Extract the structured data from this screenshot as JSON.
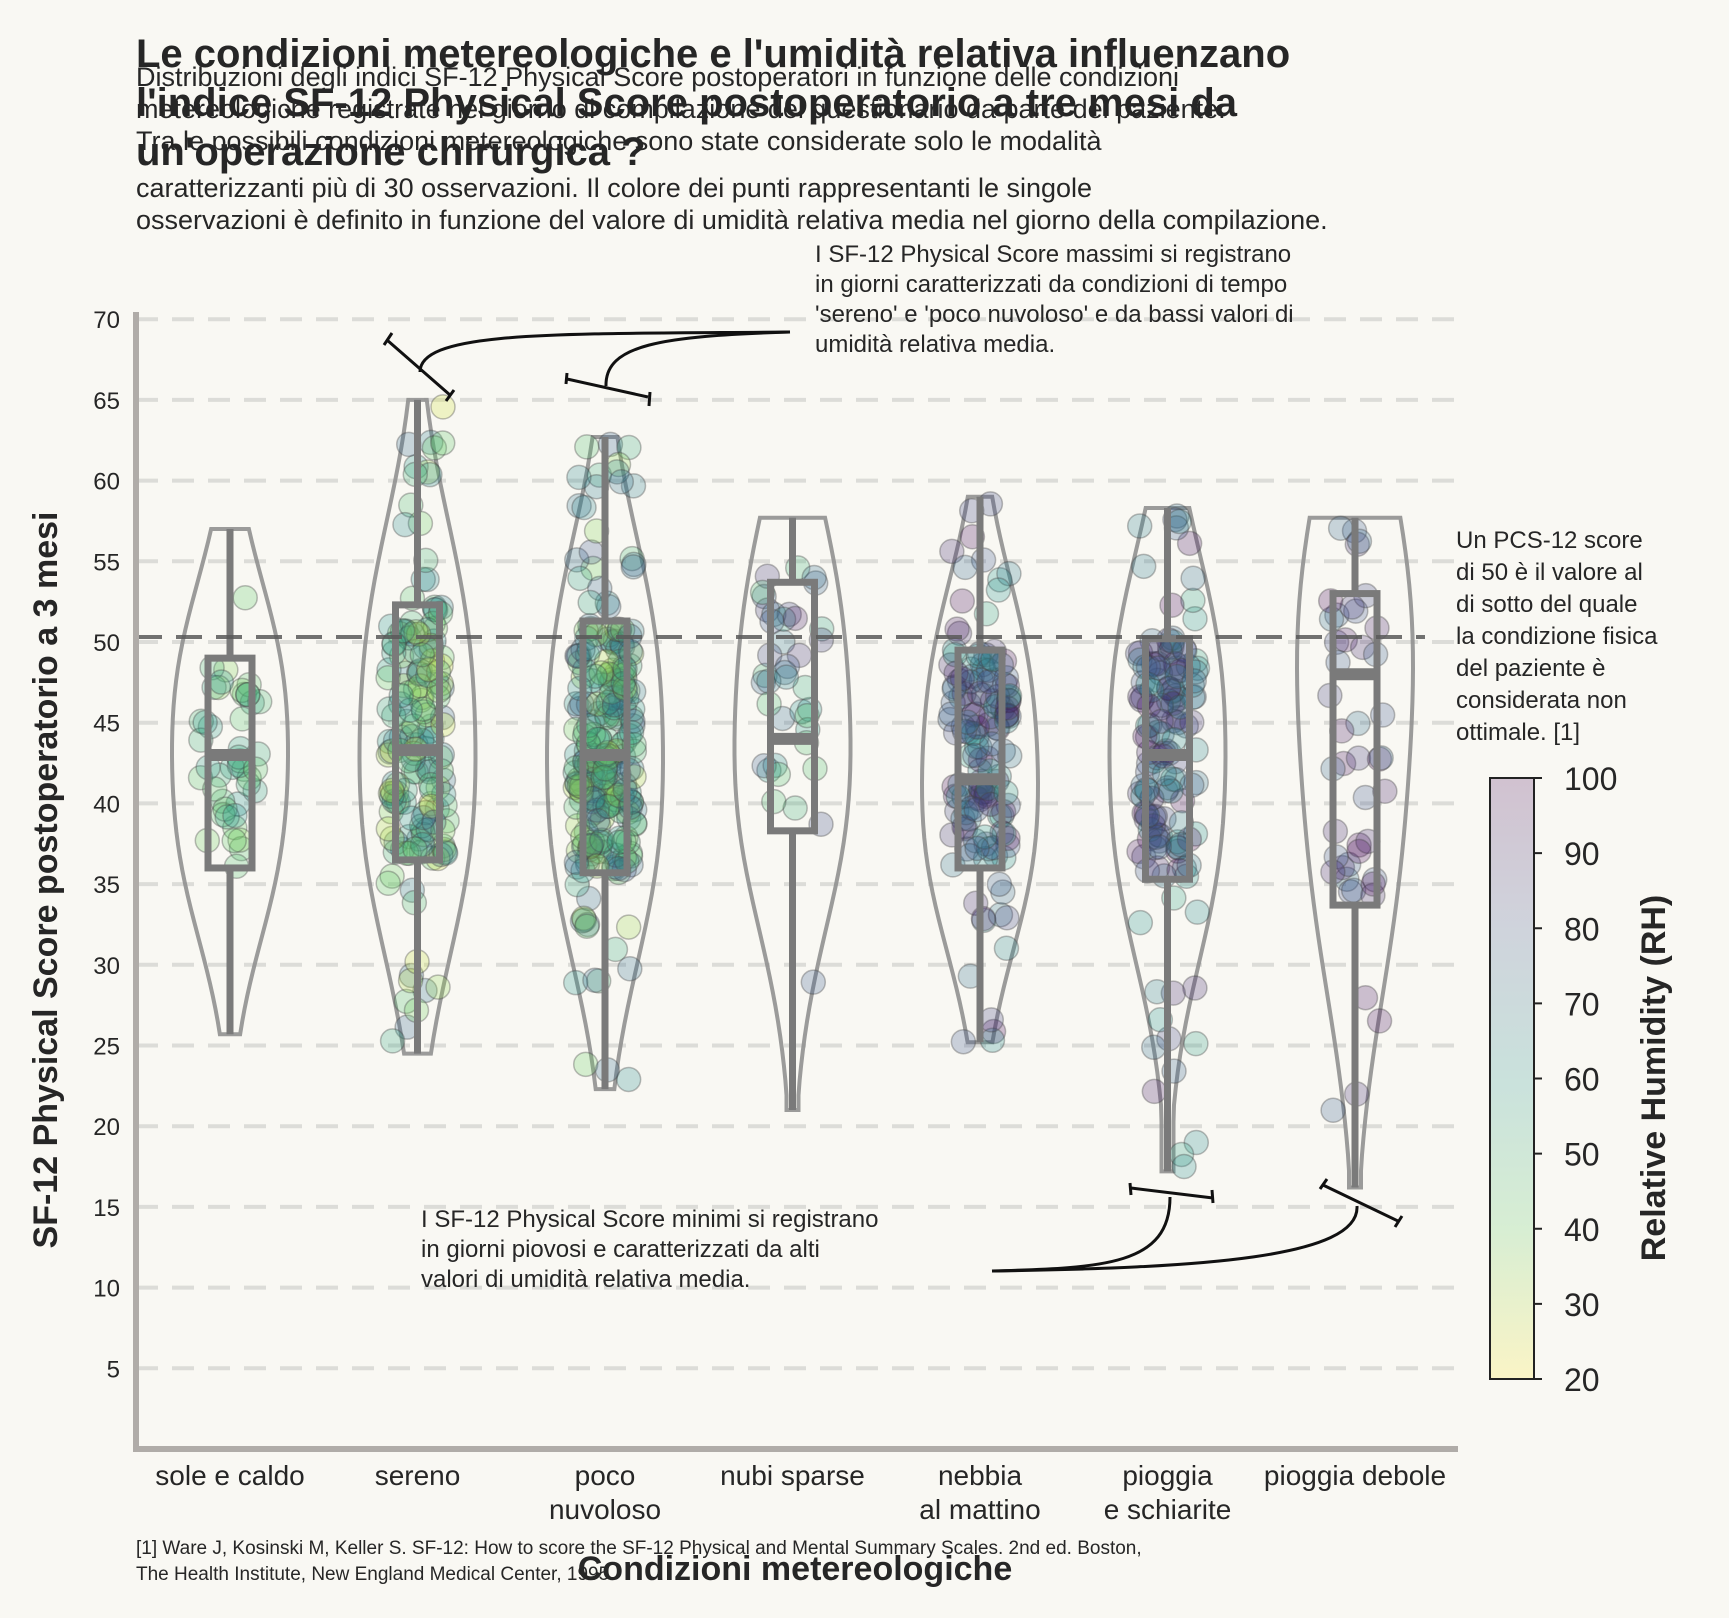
{
  "title": "Le condizioni metereologiche e l'umidità relativa influenzano l'indice SF-12 Physical Score postoperatorio a tre mesi da un'operazione chirurgica ?",
  "title_lines": [
    "Le condizioni metereologiche e l'umidità relativa influenzano",
    "l'indice SF-12 Physical Score postoperatorio a tre mesi da",
    "un'operazione chirurgica ?"
  ],
  "subtitle_lines": [
    "Distribuzioni degli indici SF-12 Physical Score postoperatori in funzione delle condizioni",
    "metereologiche registrate nel giorno di compilazione del questionario da parte del paziente.",
    "Tra le possibili condizioni metereologiche sono state considerate solo le modalità",
    "caratterizzanti più di 30 osservazioni. Il colore dei punti rappresentanti le singole",
    "osservazioni è definito in funzione del valore di umidità relativa media nel giorno della compilazione."
  ],
  "annotation_top_lines": [
    "I SF-12 Physical Score massimi si registrano",
    "in giorni caratterizzati da condizioni di tempo",
    "'sereno' e 'poco nuvoloso' e da bassi valori di",
    "umidità relativa media."
  ],
  "annotation_bottom_lines": [
    "I SF-12 Physical Score minimi si registrano",
    "in giorni piovosi e caratterizzati da alti",
    "valori di umidità relativa media."
  ],
  "annotation_side_lines": [
    "Un PCS-12 score",
    "di 50 è il valore al",
    "di sotto del quale",
    "la condizione fisica",
    " del paziente è",
    "considerata non",
    "ottimale. [1]"
  ],
  "reference_lines": [
    "[1] Ware J, Kosinski M, Keller S. SF-12: How to score the SF-12 Physical and Mental Summary Scales. 2nd ed. Boston,",
    "The Health Institute, New England Medical Center, 1995"
  ],
  "colors": {
    "background": "#f9f8f3",
    "box": "#7a7a7a",
    "violin": "#909090",
    "threshold": "#5a5a5a",
    "grid": "#dcdcd8",
    "spine": "#b0aca8",
    "colormap": [
      "#fde725",
      "#5ec962",
      "#21918c",
      "#3b528b",
      "#440154"
    ]
  },
  "chart_data": {
    "type": "violin",
    "xlabel": "Condizioni metereologiche",
    "ylabel": "SF-12 Physical Score postoperatorio a 3 mesi",
    "ylim": [
      0,
      70
    ],
    "yticks": [
      5,
      10,
      15,
      20,
      25,
      30,
      35,
      40,
      45,
      50,
      55,
      60,
      65,
      70
    ],
    "grid": "horizontal dashed",
    "threshold": 50,
    "colorbar": {
      "label": "Relative Humidity ($RH$)",
      "label_display": "Relative Humidity (RH)",
      "range": [
        20,
        100
      ],
      "ticks": [
        20,
        30,
        40,
        50,
        60,
        70,
        80,
        90,
        100
      ],
      "colormap": "viridis_r"
    },
    "categories": [
      {
        "label": "sole e caldo",
        "label_lines": [
          "sole e caldo"
        ],
        "min": 25.7,
        "q1": 36,
        "median": 43,
        "q3": 49,
        "max": 57,
        "n": 45,
        "rh": [
          35,
          60
        ]
      },
      {
        "label": "sereno",
        "label_lines": [
          "sereno"
        ],
        "min": 24.5,
        "q1": 36.5,
        "median": 43.3,
        "q3": 52.3,
        "max": 65,
        "n": 170,
        "rh": [
          25,
          75
        ]
      },
      {
        "label": "poco nuvoloso",
        "label_lines": [
          "poco",
          "nuvoloso"
        ],
        "min": 22.3,
        "q1": 35.7,
        "median": 43,
        "q3": 51.3,
        "max": 62.7,
        "n": 260,
        "rh": [
          30,
          80
        ]
      },
      {
        "label": "nubi sparse",
        "label_lines": [
          "nubi sparse"
        ],
        "min": 21,
        "q1": 38.3,
        "median": 44,
        "q3": 53.7,
        "max": 57.7,
        "n": 40,
        "rh": [
          40,
          95
        ]
      },
      {
        "label": "nebbia al mattino",
        "label_lines": [
          "nebbia",
          "al mattino"
        ],
        "min": 25.2,
        "q1": 36,
        "median": 41.5,
        "q3": 49.5,
        "max": 59,
        "n": 150,
        "rh": [
          55,
          100
        ]
      },
      {
        "label": "pioggia e schiarite",
        "label_lines": [
          "pioggia",
          "e schiarite"
        ],
        "min": 17.2,
        "q1": 35.3,
        "median": 43,
        "q3": 50.2,
        "max": 58.3,
        "n": 150,
        "rh": [
          55,
          100
        ]
      },
      {
        "label": "pioggia debole",
        "label_lines": [
          "pioggia debole"
        ],
        "min": 16.2,
        "q1": 33.7,
        "median": 48,
        "q3": 53,
        "max": 57.7,
        "n": 45,
        "rh": [
          70,
          100
        ]
      }
    ]
  }
}
